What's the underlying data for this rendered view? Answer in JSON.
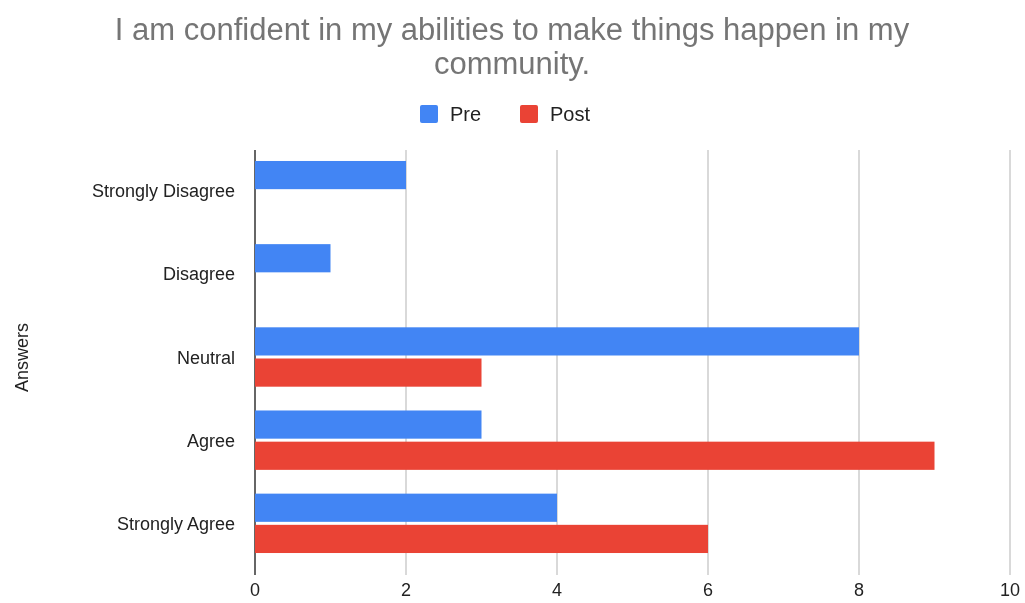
{
  "chart_data": {
    "type": "bar",
    "orientation": "horizontal",
    "title": "I am confident in my abilities to make things happen in my community.",
    "ylabel": "Answers",
    "categories": [
      "Strongly Disagree",
      "Disagree",
      "Neutral",
      "Agree",
      "Strongly Agree"
    ],
    "series": [
      {
        "name": "Pre",
        "color": "#4285f4",
        "values": [
          2,
          1,
          8,
          3,
          4
        ]
      },
      {
        "name": "Post",
        "color": "#ea4335",
        "values": [
          0,
          0,
          3,
          9,
          6
        ]
      }
    ],
    "xlim": [
      0,
      10
    ],
    "xticks": [
      0,
      2,
      4,
      6,
      8,
      10
    ],
    "grid": "x",
    "legend": "top"
  }
}
